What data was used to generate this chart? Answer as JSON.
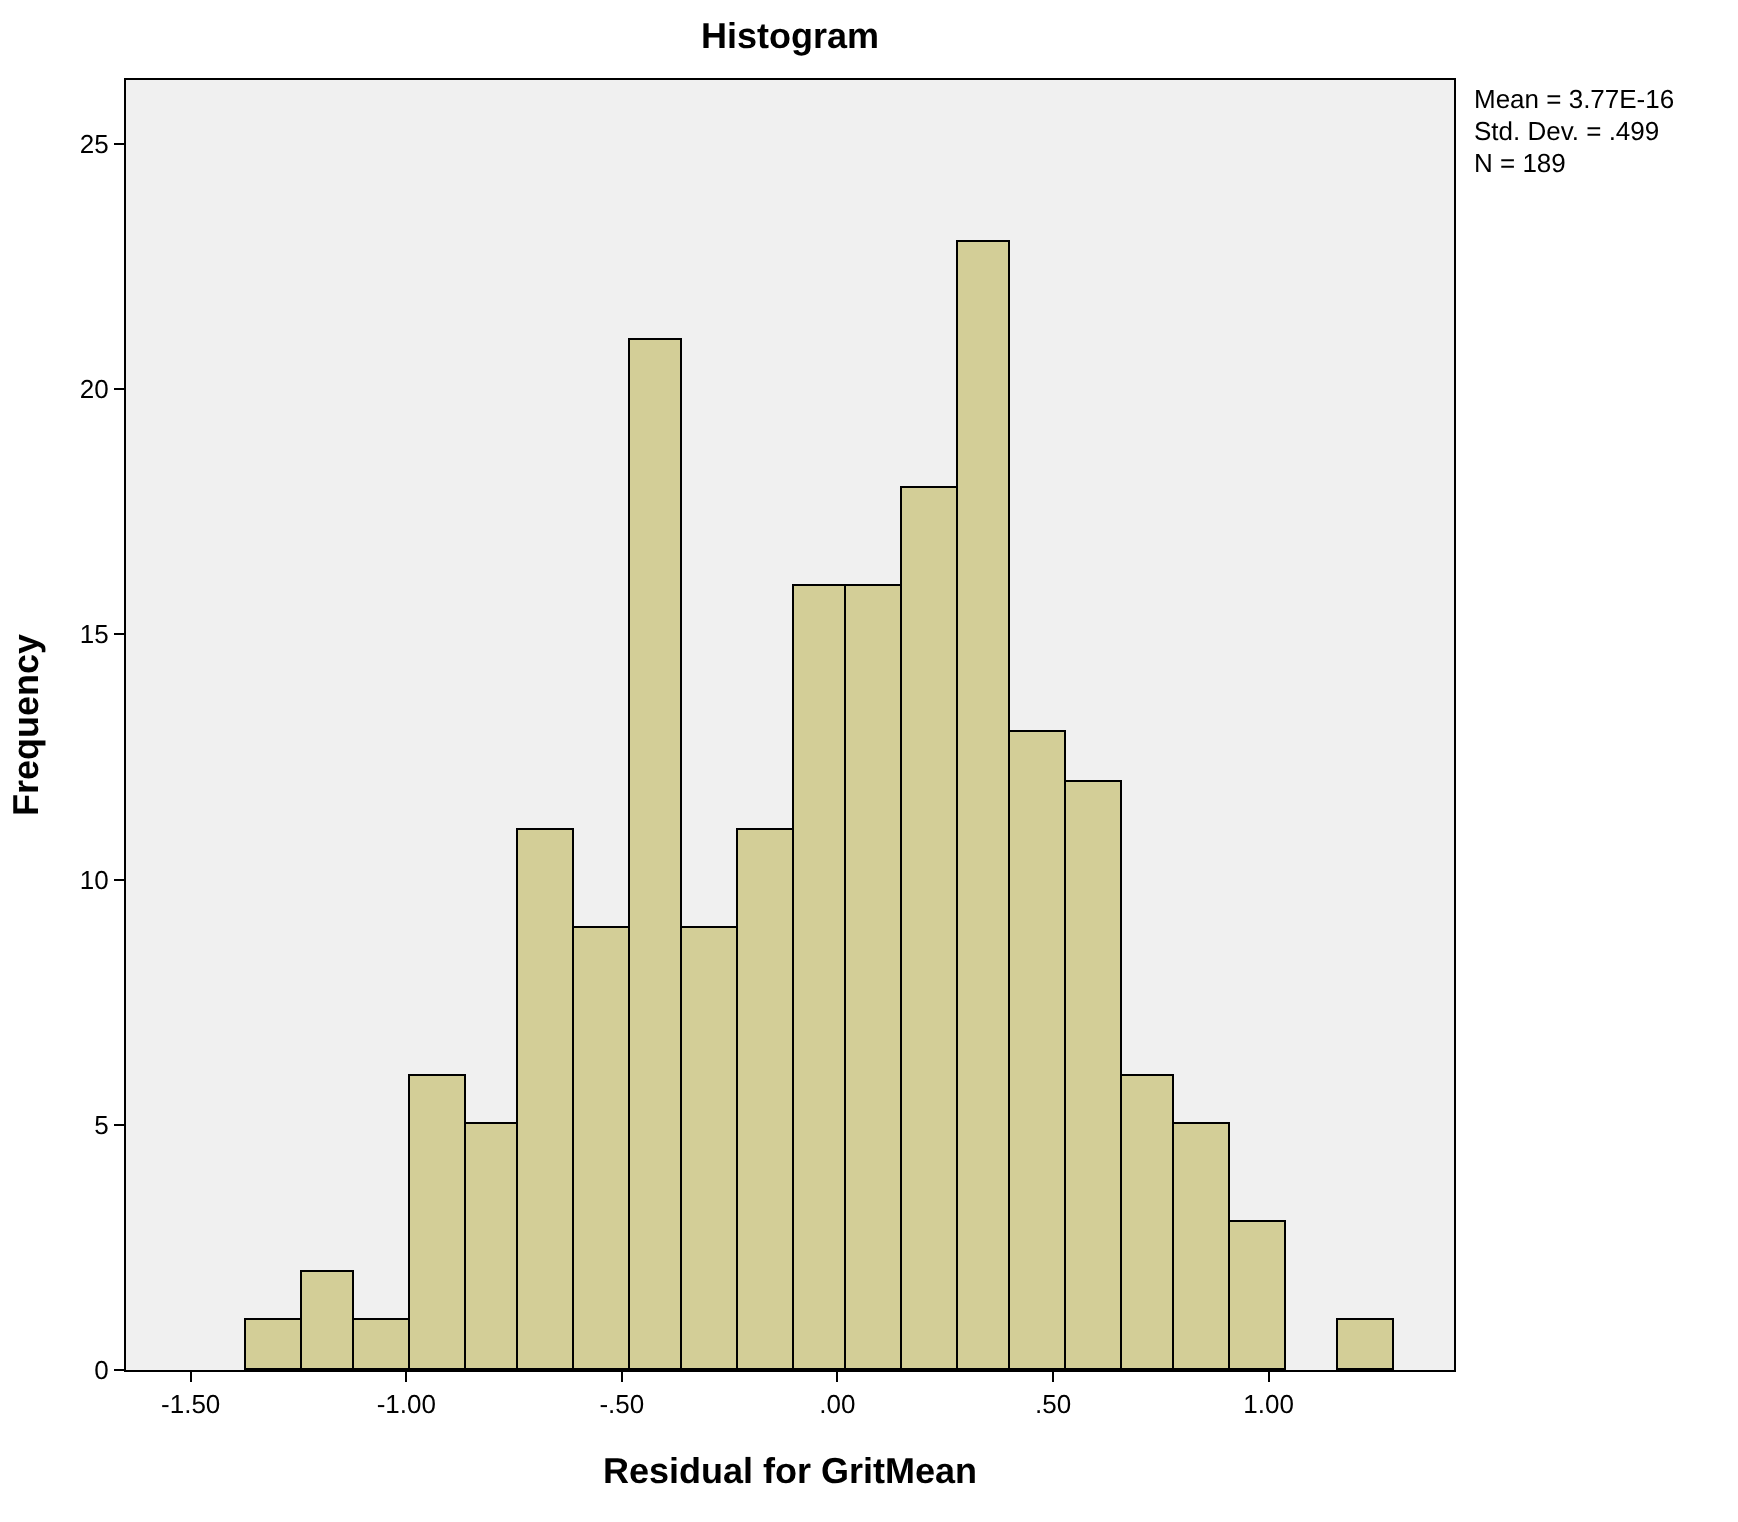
{
  "chart_data": {
    "type": "histogram",
    "title": "Histogram",
    "xlabel": "Residual for GritMean",
    "ylabel": "Frequency",
    "bins": [
      -1.37,
      -1.24,
      -1.12,
      -0.99,
      -0.86,
      -0.74,
      -0.61,
      -0.48,
      -0.36,
      -0.23,
      -0.1,
      0.02,
      0.15,
      0.28,
      0.4,
      0.53,
      0.66,
      0.78,
      0.91,
      1.04,
      1.16,
      1.29
    ],
    "values": [
      1,
      2,
      1,
      6,
      5,
      11,
      9,
      21,
      9,
      11,
      16,
      16,
      18,
      23,
      13,
      12,
      6,
      5,
      3,
      0,
      1
    ],
    "color": "#d3ce97",
    "xlim": [
      -1.65,
      1.43
    ],
    "xticks": [
      {
        "value": -1.5,
        "label": "-1.50"
      },
      {
        "value": -1.0,
        "label": "-1.00"
      },
      {
        "value": -0.5,
        "label": "-.50"
      },
      {
        "value": 0,
        "label": ".00"
      },
      {
        "value": 0.5,
        "label": ".50"
      },
      {
        "value": 1.0,
        "label": "1.00"
      }
    ],
    "ylim": [
      0,
      26.3
    ],
    "yticks": [
      0,
      5,
      10,
      15,
      20,
      25
    ],
    "grid": false,
    "annotations": [
      "Mean = 3.77E-16",
      "Std. Dev. = .499",
      "N = 189"
    ]
  }
}
